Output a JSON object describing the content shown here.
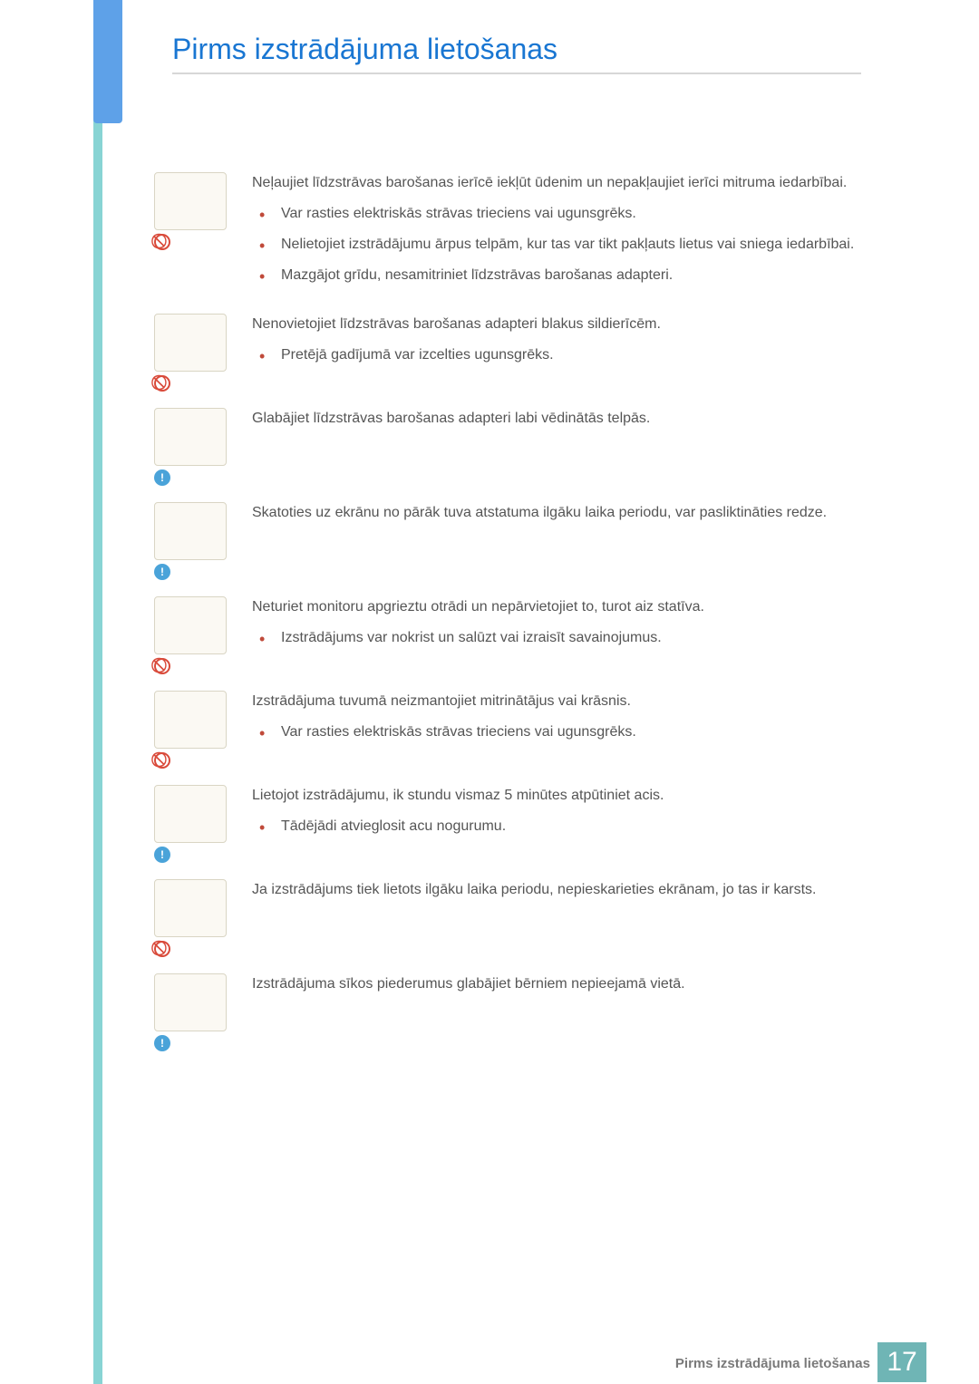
{
  "page": {
    "title": "Pirms izstrādājuma lietošanas",
    "accent_teal": "#88d4d4",
    "accent_blue": "#5ea1e8",
    "title_color": "#1976d2",
    "bullet_color": "#c04a3a",
    "body_color": "#555555",
    "footer_label": "Pirms izstrādājuma lietošanas",
    "page_number": "17",
    "page_number_bg": "#6fb5b5"
  },
  "sections": [
    {
      "badge": "prohibit",
      "lead": "Neļaujiet līdzstrāvas barošanas ierīcē iekļūt ūdenim un nepakļaujiet ierīci mitruma iedarbībai.",
      "bullets": [
        "Var rasties elektriskās strāvas trieciens vai ugunsgrēks.",
        "Nelietojiet izstrādājumu ārpus telpām, kur tas var tikt pakļauts lietus vai sniega iedarbībai.",
        "Mazgājot grīdu, nesamitriniet līdzstrāvas barošanas adapteri."
      ]
    },
    {
      "badge": "prohibit",
      "lead": "Nenovietojiet līdzstrāvas barošanas adapteri blakus sildierīcēm.",
      "bullets": [
        "Pretējā gadījumā var izcelties ugunsgrēks."
      ]
    },
    {
      "badge": "info",
      "lead": "Glabājiet līdzstrāvas barošanas adapteri labi vēdinātās telpās.",
      "bullets": []
    },
    {
      "badge": "info",
      "lead": "Skatoties uz ekrānu no pārāk tuva atstatuma ilgāku laika periodu, var pasliktināties redze.",
      "bullets": []
    },
    {
      "badge": "prohibit",
      "lead": "Neturiet monitoru apgrieztu otrādi un nepārvietojiet to, turot aiz statīva.",
      "bullets": [
        "Izstrādājums var nokrist un salūzt vai izraisīt savainojumus."
      ]
    },
    {
      "badge": "prohibit",
      "lead": "Izstrādājuma tuvumā neizmantojiet mitrinātājus vai krāsnis.",
      "bullets": [
        "Var rasties elektriskās strāvas trieciens vai ugunsgrēks."
      ]
    },
    {
      "badge": "info",
      "lead": "Lietojot izstrādājumu, ik stundu vismaz 5 minūtes atpūtiniet acis.",
      "bullets": [
        "Tādējādi atvieglosit acu nogurumu."
      ]
    },
    {
      "badge": "prohibit",
      "lead": "Ja izstrādājums tiek lietots ilgāku laika periodu, nepieskarieties ekrānam, jo tas ir karsts.",
      "bullets": []
    },
    {
      "badge": "info",
      "lead": "Izstrādājuma sīkos piederumus glabājiet bērniem nepieejamā vietā.",
      "bullets": []
    }
  ]
}
